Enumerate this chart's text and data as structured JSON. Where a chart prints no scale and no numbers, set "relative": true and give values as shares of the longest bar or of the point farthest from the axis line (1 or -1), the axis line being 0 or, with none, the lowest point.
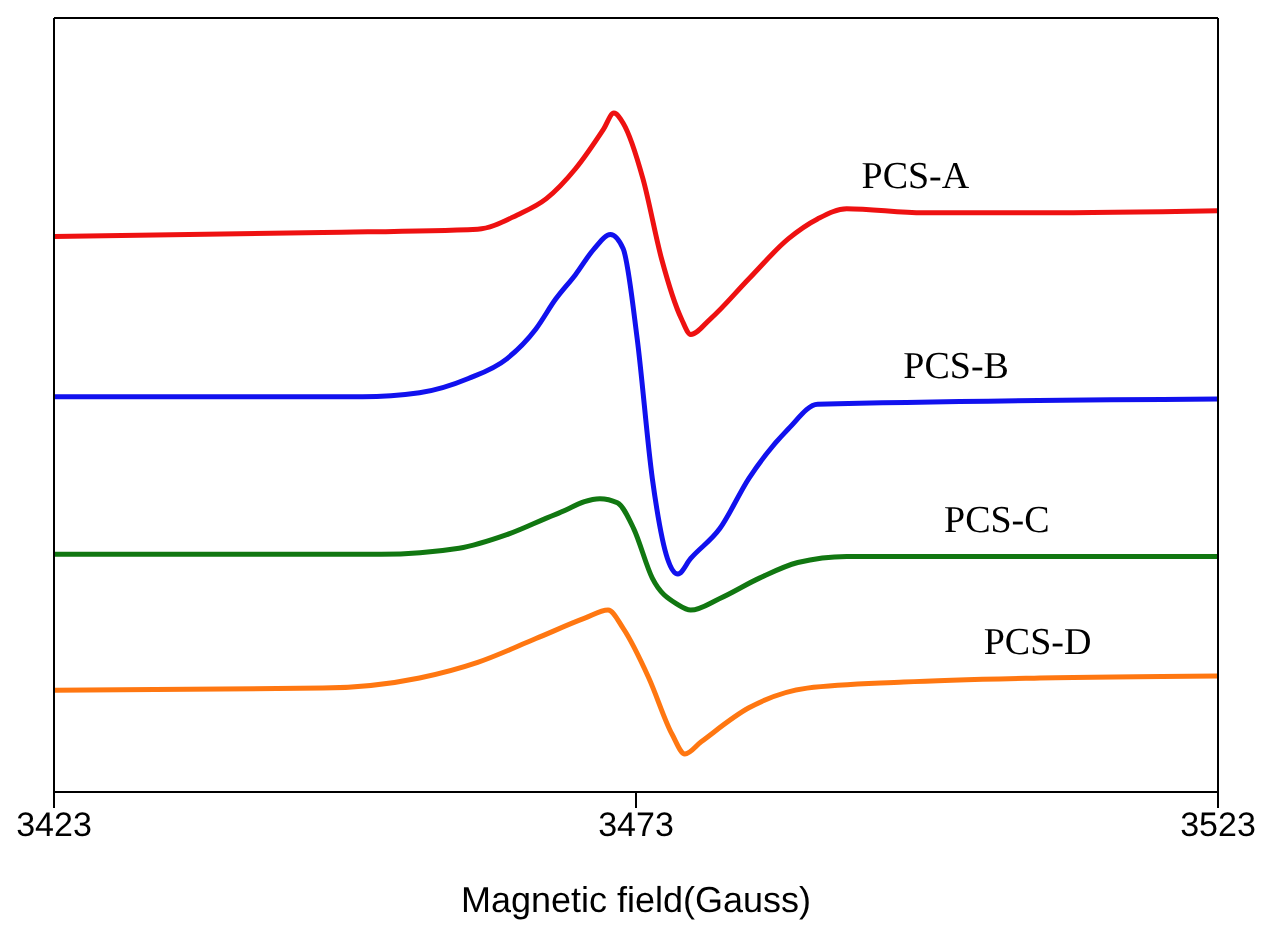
{
  "chart_data": {
    "type": "line",
    "relative": true,
    "xlabel": "Magnetic field(Gauss)",
    "xlim": [
      3423,
      3523
    ],
    "xticks": [
      3423,
      3473,
      3523
    ],
    "grid": false,
    "legend": false,
    "marker": "none",
    "line_style": "solid",
    "series": [
      {
        "name": "PCS-A",
        "color": "#ee1111",
        "x": [
          3423,
          3446.1,
          3459.4,
          3462.8,
          3465.3,
          3467.8,
          3470.2,
          3471.1,
          3471.9,
          3473.6,
          3475.2,
          3476.9,
          3477.7,
          3479.4,
          3482.7,
          3486.1,
          3488.6,
          3491.1,
          3497.7,
          3507.7,
          3523
        ],
        "values": [
          0.818,
          0.824,
          0.829,
          0.85,
          0.874,
          0.918,
          0.976,
          1,
          0.985,
          0.903,
          0.785,
          0.697,
          0.674,
          0.697,
          0.756,
          0.815,
          0.844,
          0.859,
          0.853,
          0.853,
          0.856
        ]
      },
      {
        "name": "PCS-B",
        "color": "#1111ee",
        "x": [
          3423,
          3449.5,
          3454.4,
          3458.6,
          3461.9,
          3464.4,
          3466.1,
          3467.8,
          3469.4,
          3470.8,
          3471.9,
          3473.1,
          3474.4,
          3475.7,
          3476.6,
          3477.7,
          3480.2,
          3482.7,
          3486.1,
          3488.6,
          3523
        ],
        "values": [
          0.582,
          0.582,
          0.588,
          0.609,
          0.638,
          0.682,
          0.726,
          0.762,
          0.8,
          0.821,
          0.8,
          0.668,
          0.462,
          0.344,
          0.321,
          0.344,
          0.388,
          0.462,
          0.535,
          0.571,
          0.579
        ]
      },
      {
        "name": "PCS-C",
        "color": "#117711",
        "x": [
          3423,
          3451.1,
          3457.8,
          3461.9,
          3466.1,
          3469.9,
          3471.4,
          3472.8,
          3474.4,
          3476.6,
          3477.7,
          3480.2,
          3483.6,
          3486.9,
          3491.1,
          3523
        ],
        "values": [
          0.35,
          0.35,
          0.359,
          0.379,
          0.409,
          0.432,
          0.426,
          0.388,
          0.315,
          0.276,
          0.268,
          0.285,
          0.315,
          0.338,
          0.347,
          0.347
        ]
      },
      {
        "name": "PCS-D",
        "color": "#ff7711",
        "x": [
          3423,
          3446.1,
          3454.4,
          3459.4,
          3464.4,
          3468.6,
          3470.6,
          3471.9,
          3474.1,
          3476.1,
          3477.2,
          3478.6,
          3482.7,
          3487.7,
          3496,
          3507.7,
          3523
        ],
        "values": [
          0.15,
          0.153,
          0.168,
          0.191,
          0.226,
          0.256,
          0.268,
          0.241,
          0.168,
          0.085,
          0.056,
          0.074,
          0.124,
          0.153,
          0.162,
          0.168,
          0.171
        ]
      }
    ]
  }
}
